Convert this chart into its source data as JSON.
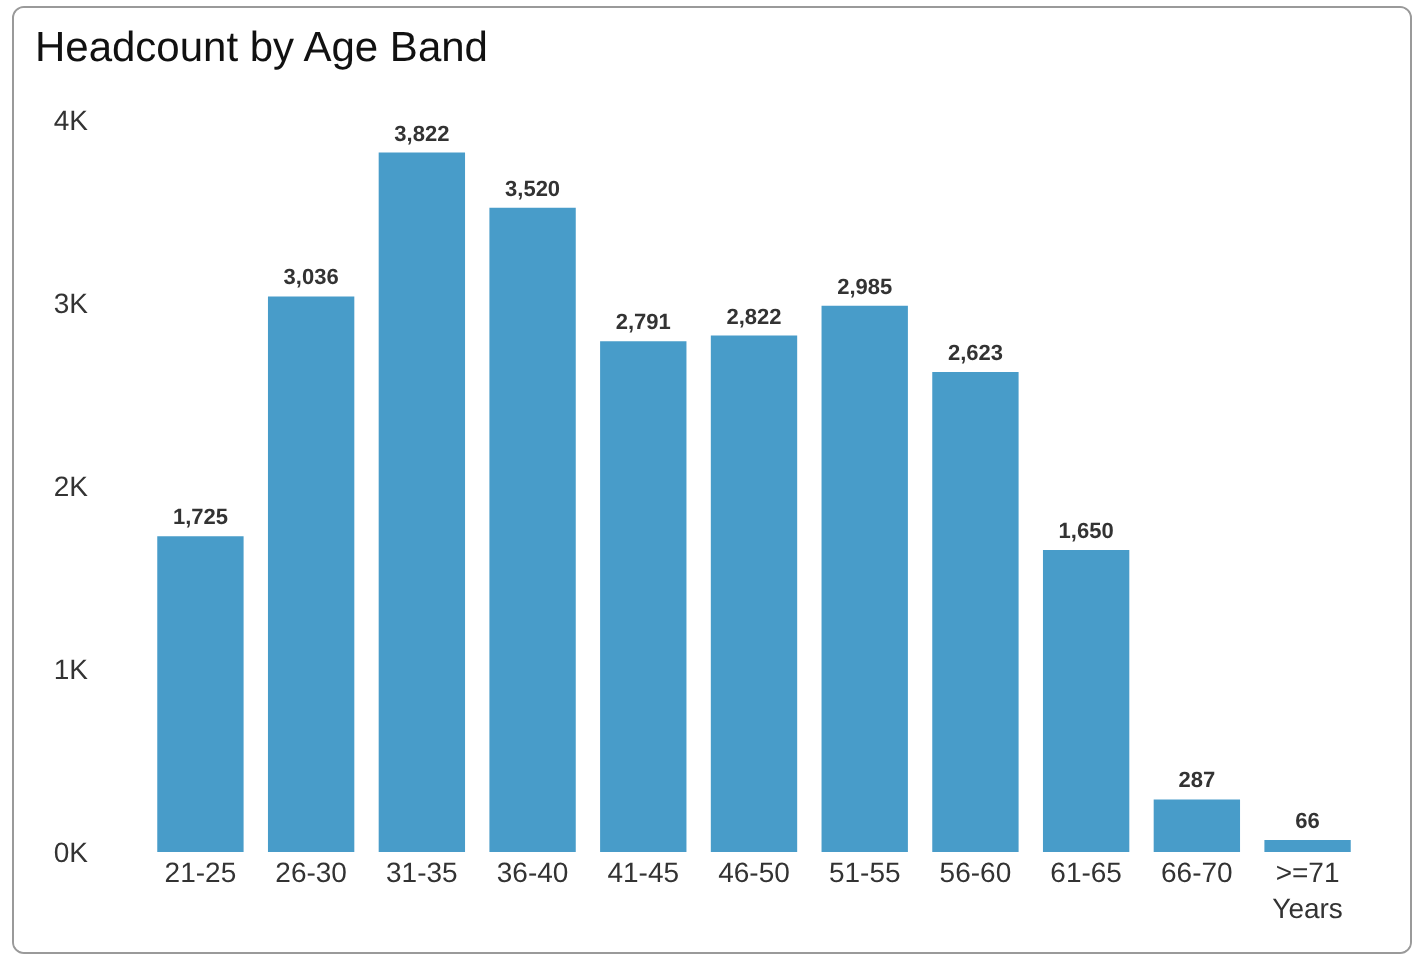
{
  "chart_data": {
    "type": "bar",
    "title": "Headcount by Age Band",
    "categories": [
      "21-25",
      "26-30",
      "31-35",
      "36-40",
      "41-45",
      "46-50",
      "51-55",
      "56-60",
      "61-65",
      "66-70",
      ">=71 Years"
    ],
    "values": [
      1725,
      3036,
      3822,
      3520,
      2791,
      2822,
      2985,
      2623,
      1650,
      287,
      66
    ],
    "color": "#489cc9",
    "ylim": [
      0,
      4000
    ],
    "yticks": [
      {
        "value": 0,
        "label": "0K"
      },
      {
        "value": 1000,
        "label": "1K"
      },
      {
        "value": 2000,
        "label": "2K"
      },
      {
        "value": 3000,
        "label": "3K"
      },
      {
        "value": 4000,
        "label": "4K"
      }
    ],
    "value_labels": [
      "1,725",
      "3,036",
      "3,822",
      "3,520",
      "2,791",
      "2,822",
      "2,985",
      "2,623",
      "1,650",
      "287",
      "66"
    ],
    "grid": false,
    "legend": false
  }
}
